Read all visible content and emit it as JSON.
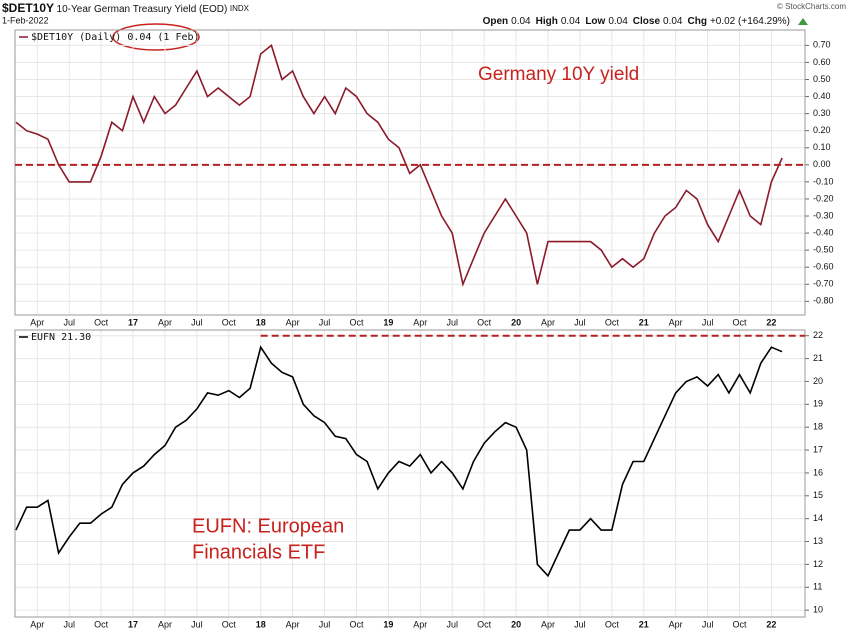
{
  "header": {
    "symbol": "$DET10Y",
    "name": "10-Year German Treasury Yield (EOD)",
    "exchange": "INDX",
    "date": "1-Feb-2022",
    "quote": [
      {
        "label": "Open",
        "value": "0.04"
      },
      {
        "label": "High",
        "value": "0.04"
      },
      {
        "label": "Low",
        "value": "0.04"
      },
      {
        "label": "Close",
        "value": "0.04"
      },
      {
        "label": "Chg",
        "value": "+0.02 (+164.29%)"
      }
    ],
    "credit": "© StockCharts.com"
  },
  "chart_data": [
    {
      "type": "line",
      "annotation": [
        "Germany 10Y yield"
      ],
      "last_label": "0.04 (1 Feb)",
      "categories": [
        null,
        null,
        "Apr",
        null,
        null,
        "Jul",
        null,
        null,
        "Oct",
        null,
        null,
        "17",
        null,
        null,
        "Apr",
        null,
        null,
        "Jul",
        null,
        null,
        "Oct",
        null,
        null,
        "18",
        null,
        null,
        "Apr",
        null,
        null,
        "Jul",
        null,
        null,
        "Oct",
        null,
        null,
        "19",
        null,
        null,
        "Apr",
        null,
        null,
        "Jul",
        null,
        null,
        "Oct",
        null,
        null,
        "20",
        null,
        null,
        "Apr",
        null,
        null,
        "Jul",
        null,
        null,
        "Oct",
        null,
        null,
        "21",
        null,
        null,
        "Apr",
        null,
        null,
        "Jul",
        null,
        null,
        "Oct",
        null,
        null,
        "22",
        null
      ],
      "series": [
        {
          "name": "$DET10Y (Daily)",
          "color": "#8b1a2b",
          "values": [
            0.25,
            0.2,
            0.18,
            0.15,
            0.0,
            -0.1,
            -0.1,
            -0.1,
            0.05,
            0.25,
            0.2,
            0.4,
            0.25,
            0.4,
            0.3,
            0.35,
            0.45,
            0.55,
            0.4,
            0.45,
            0.4,
            0.35,
            0.4,
            0.65,
            0.7,
            0.5,
            0.55,
            0.4,
            0.3,
            0.4,
            0.3,
            0.45,
            0.4,
            0.3,
            0.25,
            0.15,
            0.1,
            -0.05,
            0.0,
            -0.15,
            -0.3,
            -0.4,
            -0.7,
            -0.55,
            -0.4,
            -0.3,
            -0.2,
            -0.3,
            -0.4,
            -0.7,
            -0.45,
            -0.45,
            -0.45,
            -0.45,
            -0.45,
            -0.5,
            -0.6,
            -0.55,
            -0.6,
            -0.55,
            -0.4,
            -0.3,
            -0.25,
            -0.15,
            -0.2,
            -0.35,
            -0.45,
            -0.3,
            -0.15,
            -0.3,
            -0.35,
            -0.1,
            0.04
          ]
        }
      ],
      "ylim": [
        -0.88,
        0.79
      ],
      "yticks": [
        {
          "value": 0.7,
          "label": "0.70"
        },
        {
          "value": 0.6,
          "label": "0.60"
        },
        {
          "value": 0.5,
          "label": "0.50"
        },
        {
          "value": 0.4,
          "label": "0.40"
        },
        {
          "value": 0.3,
          "label": "0.30"
        },
        {
          "value": 0.2,
          "label": "0.20"
        },
        {
          "value": 0.1,
          "label": "0.10"
        },
        {
          "value": 0,
          "label": "0.00"
        },
        {
          "value": -0.1,
          "label": "-0.10"
        },
        {
          "value": -0.2,
          "label": "-0.20"
        },
        {
          "value": -0.3,
          "label": "-0.30"
        },
        {
          "value": -0.4,
          "label": "-0.40"
        },
        {
          "value": -0.5,
          "label": "-0.50"
        },
        {
          "value": -0.6,
          "label": "-0.60"
        },
        {
          "value": -0.7,
          "label": "-0.70"
        },
        {
          "value": -0.8,
          "label": "-0.80"
        }
      ],
      "reference_line": {
        "value": 0,
        "color": "#b22222"
      },
      "grid": true
    },
    {
      "type": "line",
      "annotation": [
        "EUFN: European",
        "Financials ETF"
      ],
      "last_label": "21.30",
      "categories": [
        null,
        null,
        "Apr",
        null,
        null,
        "Jul",
        null,
        null,
        "Oct",
        null,
        null,
        "17",
        null,
        null,
        "Apr",
        null,
        null,
        "Jul",
        null,
        null,
        "Oct",
        null,
        null,
        "18",
        null,
        null,
        "Apr",
        null,
        null,
        "Jul",
        null,
        null,
        "Oct",
        null,
        null,
        "19",
        null,
        null,
        "Apr",
        null,
        null,
        "Jul",
        null,
        null,
        "Oct",
        null,
        null,
        "20",
        null,
        null,
        "Apr",
        null,
        null,
        "Jul",
        null,
        null,
        "Oct",
        null,
        null,
        "21",
        null,
        null,
        "Apr",
        null,
        null,
        "Jul",
        null,
        null,
        "Oct",
        null,
        null,
        "22",
        null
      ],
      "series": [
        {
          "name": "EUFN",
          "color": "#000000",
          "values": [
            13.5,
            14.5,
            14.5,
            14.8,
            12.5,
            13.2,
            13.8,
            13.8,
            14.2,
            14.5,
            15.5,
            16.0,
            16.3,
            16.8,
            17.2,
            18.0,
            18.3,
            18.8,
            19.5,
            19.4,
            19.6,
            19.3,
            19.7,
            21.5,
            20.8,
            20.4,
            20.2,
            19.0,
            18.5,
            18.2,
            17.6,
            17.5,
            16.8,
            16.5,
            15.3,
            16.0,
            16.5,
            16.3,
            16.8,
            16.0,
            16.5,
            16.0,
            15.3,
            16.5,
            17.3,
            17.8,
            18.2,
            18.0,
            17.0,
            12.0,
            11.5,
            12.5,
            13.5,
            13.5,
            14.0,
            13.5,
            13.5,
            15.5,
            16.5,
            16.5,
            17.5,
            18.5,
            19.5,
            20.0,
            20.2,
            19.8,
            20.3,
            19.5,
            20.3,
            19.5,
            20.8,
            21.5,
            21.3
          ]
        }
      ],
      "ylim": [
        9.7,
        22.25
      ],
      "yticks": [
        22,
        21,
        20,
        19,
        18,
        17,
        16,
        15,
        14,
        13,
        12,
        11,
        10
      ],
      "reference_line": {
        "value": 22,
        "color": "#b22222"
      },
      "grid": true
    }
  ]
}
